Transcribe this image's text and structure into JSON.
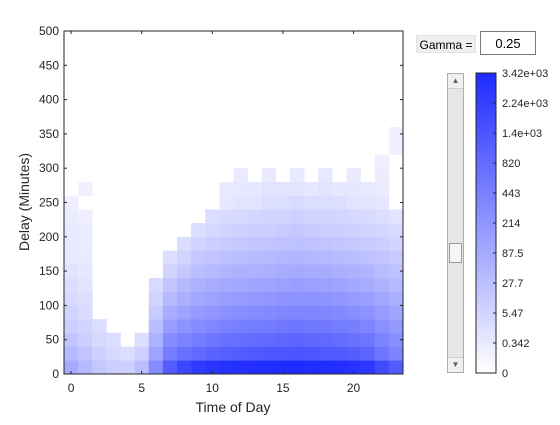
{
  "controls": {
    "gamma_label": "Gamma =",
    "gamma_value": "0.25",
    "slider_up_glyph": "▲",
    "slider_down_glyph": "▼",
    "slider_position": 0.62
  },
  "colors": {
    "low": "#ffffff",
    "high": "#1f2bff",
    "axis": "#262626"
  },
  "chart_data": {
    "type": "heatmap",
    "title": "",
    "xlabel": "Time of Day",
    "ylabel": "Delay (Minutes)",
    "xlim": [
      -0.5,
      23.5
    ],
    "ylim": [
      0,
      500
    ],
    "xticks": [
      "0",
      "5",
      "10",
      "15",
      "20"
    ],
    "xtick_values": [
      0,
      5,
      10,
      15,
      20
    ],
    "yticks": [
      "0",
      "50",
      "100",
      "150",
      "200",
      "250",
      "300",
      "350",
      "400",
      "450",
      "500"
    ],
    "ytick_values": [
      0,
      50,
      100,
      150,
      200,
      250,
      300,
      350,
      400,
      450,
      500
    ],
    "bin_width_x": 1,
    "bin_height_y": 20,
    "colorbar": {
      "labels": [
        "3.42e+03",
        "2.24e+03",
        "1.4e+03",
        "820",
        "443",
        "214",
        "87.5",
        "27.7",
        "5.47",
        "0.342",
        "0"
      ],
      "max": 3420,
      "gamma": 0.25
    },
    "values_description": "rows are delay bins from 0 at the bottom, columns are hours 0 to 23",
    "values": [
      [
        90,
        40,
        15,
        10,
        8,
        30,
        300,
        1200,
        2000,
        2500,
        2800,
        3000,
        3100,
        3200,
        3300,
        3400,
        3420,
        3380,
        3300,
        3200,
        3000,
        2700,
        1800,
        1200
      ],
      [
        40,
        20,
        8,
        4,
        2,
        8,
        120,
        500,
        700,
        850,
        1000,
        1100,
        1200,
        1300,
        1350,
        1400,
        1450,
        1400,
        1300,
        1250,
        1150,
        950,
        600,
        400
      ],
      [
        20,
        10,
        4,
        2,
        0,
        2,
        60,
        300,
        400,
        500,
        600,
        700,
        750,
        800,
        850,
        900,
        950,
        900,
        850,
        800,
        700,
        600,
        400,
        280
      ],
      [
        10,
        6,
        2,
        0,
        0,
        0,
        30,
        150,
        220,
        300,
        350,
        420,
        460,
        500,
        520,
        560,
        600,
        580,
        540,
        500,
        450,
        380,
        260,
        180
      ],
      [
        6,
        3,
        0,
        0,
        0,
        0,
        12,
        80,
        120,
        170,
        200,
        250,
        280,
        300,
        320,
        350,
        380,
        370,
        340,
        320,
        280,
        230,
        160,
        110
      ],
      [
        3,
        2,
        0,
        0,
        0,
        0,
        6,
        40,
        70,
        100,
        120,
        150,
        170,
        180,
        200,
        220,
        240,
        230,
        210,
        200,
        170,
        140,
        100,
        70
      ],
      [
        2,
        1,
        0,
        0,
        0,
        0,
        3,
        20,
        40,
        60,
        80,
        90,
        100,
        110,
        120,
        130,
        150,
        140,
        130,
        120,
        100,
        80,
        60,
        40
      ],
      [
        1,
        0.5,
        0,
        0,
        0,
        0,
        0,
        6,
        15,
        30,
        40,
        50,
        60,
        65,
        70,
        80,
        90,
        85,
        80,
        70,
        60,
        50,
        35,
        25
      ],
      [
        0.5,
        0.3,
        0,
        0,
        0,
        0,
        0,
        2,
        6,
        15,
        20,
        25,
        30,
        35,
        40,
        45,
        50,
        45,
        40,
        35,
        30,
        25,
        20,
        12
      ],
      [
        0.3,
        0.2,
        0,
        0,
        0,
        0,
        0,
        0,
        2,
        6,
        10,
        12,
        15,
        18,
        20,
        22,
        25,
        22,
        20,
        18,
        15,
        12,
        10,
        6
      ],
      [
        0.3,
        0.2,
        0,
        0,
        0,
        0,
        0,
        0,
        0,
        2,
        4,
        6,
        8,
        10,
        10,
        12,
        15,
        12,
        10,
        10,
        8,
        6,
        5,
        3
      ],
      [
        0.2,
        0.1,
        0,
        0,
        0,
        0,
        0,
        0,
        0,
        0,
        2,
        3,
        4,
        5,
        6,
        6,
        8,
        6,
        6,
        5,
        4,
        3,
        2,
        1
      ],
      [
        0.1,
        0,
        0,
        0,
        0,
        0,
        0,
        0,
        0,
        0,
        0,
        0.5,
        1,
        1,
        2,
        2,
        3,
        2,
        2,
        2,
        1,
        1,
        0.5,
        0
      ],
      [
        0,
        0.1,
        0,
        0,
        0,
        0,
        0,
        0,
        0,
        0,
        0,
        0.3,
        0.5,
        0.5,
        1,
        1,
        1,
        0.5,
        1,
        0.5,
        0.5,
        0.3,
        0.2,
        0
      ],
      [
        0,
        0,
        0,
        0,
        0,
        0,
        0,
        0,
        0,
        0,
        0,
        0,
        0.3,
        0,
        0.3,
        0,
        0.3,
        0,
        0.5,
        0,
        0.3,
        0,
        0.2,
        0
      ],
      [
        0,
        0,
        0,
        0,
        0,
        0,
        0,
        0,
        0,
        0,
        0,
        0,
        0,
        0,
        0,
        0,
        0,
        0,
        0,
        0,
        0,
        0,
        0.1,
        0
      ],
      [
        0,
        0,
        0,
        0,
        0,
        0,
        0,
        0,
        0,
        0,
        0,
        0,
        0,
        0,
        0,
        0,
        0,
        0,
        0,
        0,
        0,
        0,
        0,
        0.1
      ],
      [
        0,
        0,
        0,
        0,
        0,
        0,
        0,
        0,
        0,
        0,
        0,
        0,
        0,
        0,
        0,
        0,
        0,
        0,
        0,
        0,
        0,
        0,
        0,
        0.1
      ],
      [
        0,
        0,
        0,
        0,
        0,
        0,
        0,
        0,
        0,
        0,
        0,
        0,
        0,
        0,
        0,
        0,
        0,
        0,
        0,
        0,
        0,
        0,
        0,
        0
      ],
      [
        0,
        0,
        0,
        0,
        0,
        0,
        0,
        0,
        0,
        0,
        0,
        0,
        0,
        0,
        0,
        0,
        0,
        0,
        0,
        0,
        0,
        0,
        0,
        0
      ],
      [
        0,
        0,
        0,
        0,
        0,
        0,
        0,
        0,
        0,
        0,
        0,
        0,
        0,
        0,
        0,
        0,
        0,
        0,
        0,
        0,
        0,
        0,
        0,
        0
      ],
      [
        0,
        0,
        0,
        0,
        0,
        0,
        0,
        0,
        0,
        0,
        0,
        0,
        0,
        0,
        0,
        0,
        0,
        0,
        0,
        0,
        0,
        0,
        0,
        0
      ],
      [
        0,
        0,
        0,
        0,
        0,
        0,
        0,
        0,
        0,
        0,
        0,
        0,
        0,
        0,
        0,
        0,
        0,
        0,
        0,
        0,
        0,
        0,
        0,
        0
      ],
      [
        0,
        0,
        0,
        0,
        0,
        0,
        0,
        0,
        0,
        0,
        0,
        0,
        0,
        0,
        0,
        0,
        0,
        0,
        0,
        0,
        0,
        0,
        0,
        0
      ],
      [
        0,
        0,
        0,
        0,
        0,
        0,
        0,
        0,
        0,
        0,
        0,
        0,
        0,
        0,
        0,
        0,
        0,
        0,
        0,
        0,
        0,
        0,
        0,
        0
      ]
    ]
  }
}
